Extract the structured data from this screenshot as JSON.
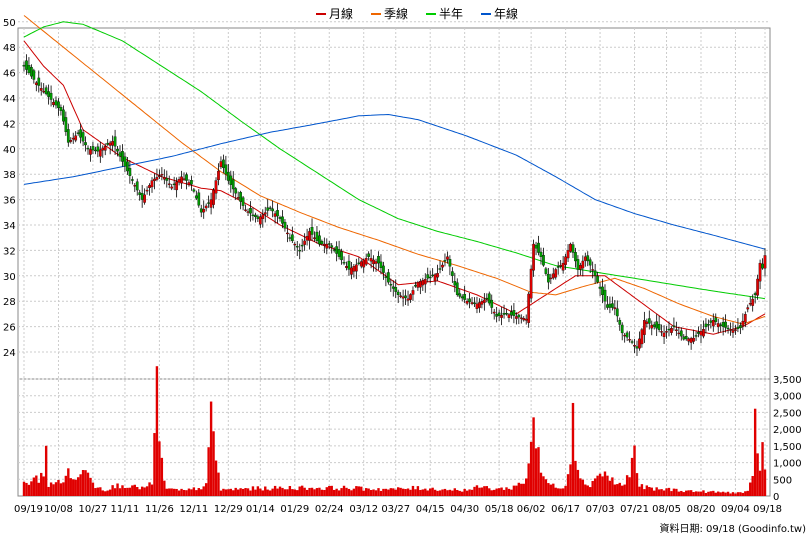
{
  "chart_data": {
    "type": "candlestick_with_volume",
    "legend": [
      {
        "name": "月線",
        "color": "#cc0000"
      },
      {
        "name": "季線",
        "color": "#ee6600"
      },
      {
        "name": "半年",
        "color": "#00cc00"
      },
      {
        "name": "年線",
        "color": "#0055cc"
      }
    ],
    "legend_placement": "top-center",
    "price_axis": {
      "ticks": [
        24,
        26,
        28,
        30,
        32,
        34,
        36,
        38,
        40,
        42,
        44,
        46,
        48,
        50
      ],
      "range": [
        23,
        51
      ],
      "side": "left"
    },
    "volume_axis": {
      "ticks": [
        "0",
        "500",
        "1,000",
        "1,500",
        "2,000",
        "2,500",
        "3,000",
        "3,500"
      ],
      "max": 3500,
      "side": "right"
    },
    "x_tick_labels": [
      "09/19",
      "10/08",
      "10/27",
      "11/11",
      "11/26",
      "12/11",
      "12/29",
      "01/14",
      "01/29",
      "02/24",
      "03/12",
      "03/27",
      "04/15",
      "04/30",
      "05/18",
      "06/02",
      "06/17",
      "07/03",
      "07/21",
      "08/05",
      "08/20",
      "09/04",
      "09/18"
    ],
    "grid": true,
    "close_anchors": [
      [
        0,
        46.5
      ],
      [
        5,
        45.2
      ],
      [
        10,
        44.1
      ],
      [
        15,
        43.0
      ],
      [
        18,
        40.5
      ],
      [
        22,
        41.2
      ],
      [
        26,
        40.0
      ],
      [
        30,
        39.8
      ],
      [
        36,
        40.6
      ],
      [
        40,
        39.0
      ],
      [
        44,
        37.5
      ],
      [
        48,
        36.0
      ],
      [
        52,
        37.5
      ],
      [
        56,
        38.0
      ],
      [
        60,
        37.0
      ],
      [
        64,
        37.8
      ],
      [
        68,
        37.2
      ],
      [
        72,
        35.0
      ],
      [
        76,
        36.0
      ],
      [
        80,
        39.0
      ],
      [
        83,
        37.5
      ],
      [
        86,
        36.5
      ],
      [
        90,
        35.2
      ],
      [
        95,
        34.5
      ],
      [
        100,
        35.3
      ],
      [
        104,
        34.5
      ],
      [
        108,
        33.0
      ],
      [
        112,
        32.0
      ],
      [
        116,
        33.5
      ],
      [
        120,
        32.5
      ],
      [
        124,
        32.5
      ],
      [
        128,
        31.5
      ],
      [
        132,
        30.5
      ],
      [
        136,
        31.0
      ],
      [
        140,
        31.5
      ],
      [
        144,
        31.0
      ],
      [
        148,
        29.5
      ],
      [
        152,
        28.5
      ],
      [
        156,
        28.2
      ],
      [
        160,
        29.5
      ],
      [
        164,
        29.8
      ],
      [
        168,
        30.2
      ],
      [
        172,
        31.5
      ],
      [
        176,
        28.5
      ],
      [
        180,
        28.0
      ],
      [
        184,
        27.8
      ],
      [
        188,
        28.2
      ],
      [
        192,
        26.8
      ],
      [
        196,
        27.0
      ],
      [
        200,
        26.8
      ],
      [
        204,
        26.6
      ],
      [
        207,
        32.5
      ],
      [
        210,
        31.5
      ],
      [
        213,
        29.5
      ],
      [
        216,
        30.5
      ],
      [
        219,
        31.0
      ],
      [
        222,
        32.5
      ],
      [
        225,
        30.5
      ],
      [
        228,
        31.5
      ],
      [
        231,
        30.5
      ],
      [
        234,
        29.0
      ],
      [
        237,
        27.5
      ],
      [
        240,
        27.5
      ],
      [
        243,
        25.5
      ],
      [
        246,
        25.0
      ],
      [
        249,
        24.3
      ],
      [
        252,
        26.5
      ],
      [
        256,
        26.0
      ],
      [
        260,
        25.5
      ],
      [
        264,
        26.0
      ],
      [
        268,
        25.0
      ],
      [
        272,
        25.1
      ],
      [
        276,
        25.8
      ],
      [
        280,
        26.5
      ],
      [
        284,
        26.0
      ],
      [
        288,
        25.7
      ],
      [
        291,
        25.9
      ],
      [
        294,
        27.5
      ],
      [
        297,
        28.5
      ],
      [
        299,
        31.0
      ],
      [
        300,
        30.6
      ],
      [
        301,
        31.6
      ]
    ],
    "volume_anchors": [
      [
        0,
        380
      ],
      [
        6,
        520
      ],
      [
        8,
        750
      ],
      [
        9,
        1600
      ],
      [
        10,
        300
      ],
      [
        14,
        420
      ],
      [
        18,
        650
      ],
      [
        22,
        500
      ],
      [
        26,
        900
      ],
      [
        29,
        300
      ],
      [
        33,
        200
      ],
      [
        40,
        350
      ],
      [
        45,
        260
      ],
      [
        50,
        250
      ],
      [
        52,
        380
      ],
      [
        54,
        3450
      ],
      [
        55,
        1350
      ],
      [
        58,
        200
      ],
      [
        66,
        160
      ],
      [
        74,
        300
      ],
      [
        76,
        2300
      ],
      [
        78,
        1200
      ],
      [
        80,
        180
      ],
      [
        90,
        220
      ],
      [
        100,
        230
      ],
      [
        110,
        250
      ],
      [
        120,
        240
      ],
      [
        130,
        240
      ],
      [
        140,
        220
      ],
      [
        150,
        200
      ],
      [
        160,
        240
      ],
      [
        170,
        200
      ],
      [
        180,
        180
      ],
      [
        186,
        280
      ],
      [
        190,
        220
      ],
      [
        196,
        220
      ],
      [
        200,
        300
      ],
      [
        204,
        500
      ],
      [
        206,
        1700
      ],
      [
        207,
        2600
      ],
      [
        208,
        1600
      ],
      [
        210,
        700
      ],
      [
        214,
        300
      ],
      [
        220,
        300
      ],
      [
        222,
        1200
      ],
      [
        223,
        3100
      ],
      [
        224,
        1500
      ],
      [
        226,
        450
      ],
      [
        230,
        350
      ],
      [
        234,
        700
      ],
      [
        236,
        650
      ],
      [
        240,
        400
      ],
      [
        244,
        300
      ],
      [
        246,
        800
      ],
      [
        247,
        1000
      ],
      [
        248,
        1250
      ],
      [
        250,
        300
      ],
      [
        256,
        200
      ],
      [
        262,
        200
      ],
      [
        270,
        150
      ],
      [
        280,
        120
      ],
      [
        290,
        100
      ],
      [
        294,
        120
      ],
      [
        296,
        500
      ],
      [
        297,
        2200
      ],
      [
        298,
        1600
      ],
      [
        299,
        900
      ],
      [
        300,
        1400
      ],
      [
        301,
        700
      ]
    ],
    "ma_series": [
      {
        "name": "月線",
        "anchors": [
          [
            0,
            48.5
          ],
          [
            8,
            46.5
          ],
          [
            16,
            45.0
          ],
          [
            24,
            41.5
          ],
          [
            40,
            39.3
          ],
          [
            56,
            37.8
          ],
          [
            72,
            36.9
          ],
          [
            80,
            36.7
          ],
          [
            92,
            35.5
          ],
          [
            104,
            34.0
          ],
          [
            120,
            32.5
          ],
          [
            136,
            31.5
          ],
          [
            152,
            29.3
          ],
          [
            168,
            29.6
          ],
          [
            184,
            28.5
          ],
          [
            200,
            27.0
          ],
          [
            212,
            28.5
          ],
          [
            224,
            30.0
          ],
          [
            236,
            30.0
          ],
          [
            250,
            28.0
          ],
          [
            264,
            26.0
          ],
          [
            280,
            25.4
          ],
          [
            292,
            26.0
          ],
          [
            301,
            27.0
          ]
        ]
      },
      {
        "name": "季線",
        "anchors": [
          [
            0,
            50.5
          ],
          [
            16,
            48.0
          ],
          [
            32,
            45.5
          ],
          [
            48,
            43.0
          ],
          [
            64,
            40.5
          ],
          [
            80,
            38.2
          ],
          [
            96,
            36.3
          ],
          [
            112,
            35.0
          ],
          [
            128,
            33.8
          ],
          [
            144,
            32.8
          ],
          [
            160,
            31.7
          ],
          [
            176,
            30.8
          ],
          [
            192,
            29.8
          ],
          [
            206,
            28.7
          ],
          [
            216,
            28.5
          ],
          [
            228,
            29.2
          ],
          [
            240,
            29.8
          ],
          [
            252,
            29.0
          ],
          [
            266,
            27.8
          ],
          [
            280,
            26.8
          ],
          [
            292,
            26.2
          ],
          [
            301,
            26.8
          ]
        ]
      },
      {
        "name": "半年",
        "anchors": [
          [
            0,
            48.8
          ],
          [
            8,
            49.6
          ],
          [
            16,
            50.0
          ],
          [
            24,
            49.8
          ],
          [
            40,
            48.5
          ],
          [
            56,
            46.5
          ],
          [
            72,
            44.5
          ],
          [
            88,
            42.2
          ],
          [
            104,
            40.0
          ],
          [
            120,
            38.0
          ],
          [
            136,
            36.0
          ],
          [
            152,
            34.5
          ],
          [
            168,
            33.5
          ],
          [
            184,
            32.7
          ],
          [
            200,
            31.8
          ],
          [
            216,
            30.8
          ],
          [
            232,
            30.3
          ],
          [
            248,
            29.8
          ],
          [
            264,
            29.3
          ],
          [
            280,
            28.8
          ],
          [
            301,
            28.2
          ]
        ]
      },
      {
        "name": "年線",
        "anchors": [
          [
            0,
            37.2
          ],
          [
            20,
            37.8
          ],
          [
            40,
            38.6
          ],
          [
            60,
            39.4
          ],
          [
            80,
            40.4
          ],
          [
            100,
            41.3
          ],
          [
            120,
            42.0
          ],
          [
            136,
            42.6
          ],
          [
            148,
            42.7
          ],
          [
            160,
            42.3
          ],
          [
            180,
            41.0
          ],
          [
            200,
            39.5
          ],
          [
            216,
            37.8
          ],
          [
            232,
            36.0
          ],
          [
            248,
            34.9
          ],
          [
            264,
            34.0
          ],
          [
            280,
            33.2
          ],
          [
            301,
            32.1
          ]
        ]
      }
    ]
  },
  "source_label": "資料日期: 09/18 (Goodinfo.tw)"
}
